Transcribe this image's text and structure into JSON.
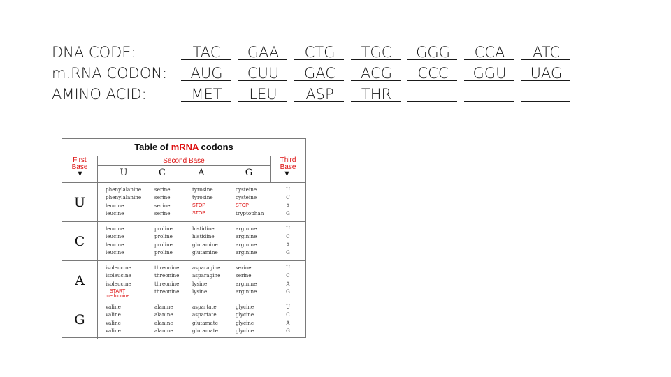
{
  "worksheet": {
    "rows": [
      {
        "label": "DNA CODE:",
        "cells": [
          "TAC",
          "GAA",
          "CTG",
          "TGC",
          "GGG",
          "CCA",
          "ATC"
        ]
      },
      {
        "label": "m.RNA CODON:",
        "cells": [
          "AUG",
          "CUU",
          "GAC",
          "ACG",
          "CCC",
          "GGU",
          "UAG"
        ]
      },
      {
        "label": "AMINO ACID:",
        "cells": [
          "MET",
          "LEU",
          "ASP",
          "THR",
          "",
          "",
          ""
        ]
      }
    ]
  },
  "codon_table": {
    "title_prefix": "Table of ",
    "title_highlight": "mRNA",
    "title_suffix": " codons",
    "first_base_label": "First Base",
    "second_base_label": "Second Base",
    "third_base_label": "Third Base",
    "second_bases": [
      "U",
      "C",
      "A",
      "G"
    ],
    "blocks": [
      {
        "letter": "U",
        "columns": [
          [
            "phenylalanine",
            "phenylalanine",
            "leucine",
            "leucine"
          ],
          [
            "serine",
            "serine",
            "serine",
            "serine"
          ],
          [
            "tyrosine",
            "tyrosine",
            "STOP",
            "STOP"
          ],
          [
            "cysteine",
            "cysteine",
            "STOP",
            "tryptophan"
          ]
        ],
        "third": [
          "U",
          "C",
          "A",
          "G"
        ]
      },
      {
        "letter": "C",
        "columns": [
          [
            "leucine",
            "leucine",
            "leucine",
            "leucine"
          ],
          [
            "proline",
            "proline",
            "proline",
            "proline"
          ],
          [
            "histidine",
            "histidine",
            "glutamine",
            "glutamine"
          ],
          [
            "arginine",
            "arginine",
            "arginine",
            "arginine"
          ]
        ],
        "third": [
          "U",
          "C",
          "A",
          "G"
        ]
      },
      {
        "letter": "A",
        "columns": [
          [
            "isoleucine",
            "isoleucine",
            "isoleucine",
            ""
          ],
          [
            "threonine",
            "threonine",
            "threonine",
            "threonine"
          ],
          [
            "asparagine",
            "asparagine",
            "lysine",
            "lysine"
          ],
          [
            "serine",
            "serine",
            "arginine",
            "arginine"
          ]
        ],
        "third": [
          "U",
          "C",
          "A",
          "G"
        ],
        "start_label": "START",
        "start_sub": "methionine"
      },
      {
        "letter": "G",
        "columns": [
          [
            "valine",
            "valine",
            "valine",
            "valine"
          ],
          [
            "alanine",
            "alanine",
            "alanine",
            "alanine"
          ],
          [
            "aspartate",
            "aspartate",
            "glutamate",
            "glutamate"
          ],
          [
            "glycine",
            "glycine",
            "glycine",
            "glycine"
          ]
        ],
        "third": [
          "U",
          "C",
          "A",
          "G"
        ]
      }
    ]
  }
}
